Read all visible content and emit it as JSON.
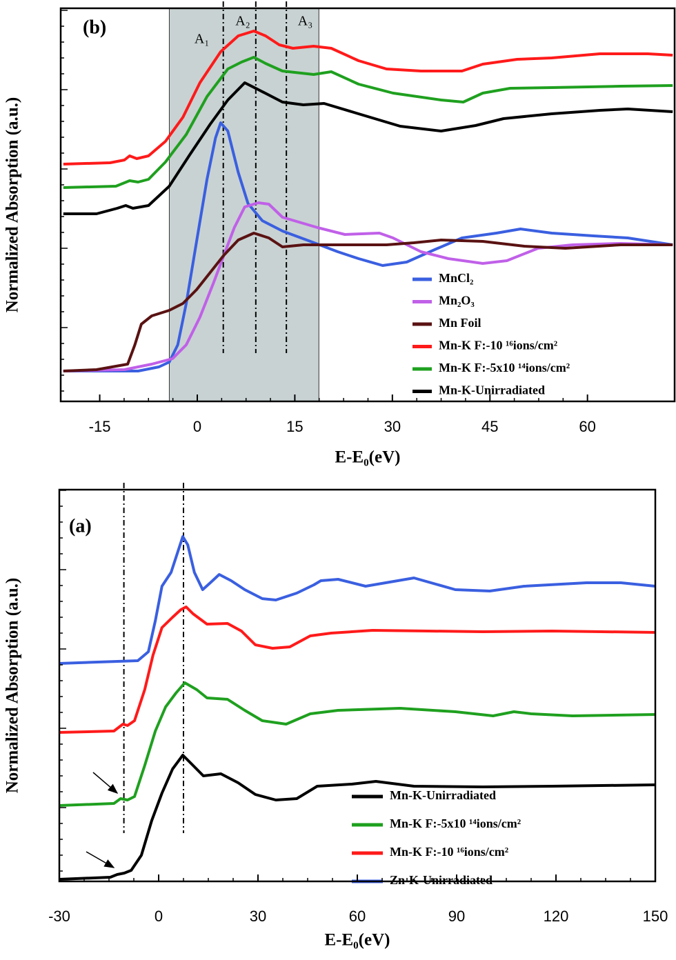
{
  "chart_data": [
    {
      "type": "line",
      "panel_label": "(b)",
      "xlabel": "E-E₀(eV)",
      "ylabel": "Normalized Absorption (a.u.)",
      "xlim": [
        -21,
        73.4
      ],
      "ylim": [
        0,
        57
      ],
      "xticks": [
        -15,
        0,
        15,
        30,
        45,
        60
      ],
      "legend": "lower right",
      "shaded_span": [
        -4.3,
        18.7
      ],
      "vlines": [
        4,
        9,
        13.7
      ],
      "annotations": [
        {
          "text": "A₁",
          "x": 0.7,
          "y": 52.4
        },
        {
          "text": "A₂",
          "x": 7,
          "y": 55
        },
        {
          "text": "A₃",
          "x": 16.6,
          "y": 55
        }
      ],
      "series": [
        {
          "name": "MnCl₂",
          "color": "#3a5fe0",
          "x": [
            -20.6,
            -9.1,
            -5.9,
            -4.3,
            -3.0,
            -1.7,
            -0.1,
            1.5,
            2.8,
            3.6,
            4.7,
            6.3,
            7.8,
            10.0,
            13.1,
            17.4,
            21.6,
            24.8,
            28.5,
            32.2,
            36.5,
            40.7,
            46.0,
            49.7,
            54.5,
            60.9,
            66.2,
            73.1
          ],
          "values": [
            4.4,
            4.4,
            5.0,
            5.7,
            8.2,
            14.2,
            23.2,
            32.2,
            38.2,
            40.4,
            39.2,
            33.2,
            28.7,
            26.2,
            24.7,
            23.2,
            21.7,
            20.7,
            19.7,
            20.2,
            22.0,
            23.7,
            24.4,
            25.0,
            24.4,
            24.0,
            23.7,
            22.7
          ]
        },
        {
          "name": "Mn₂O₃",
          "color": "#c060e8",
          "x": [
            -20.6,
            -11.2,
            -7.0,
            -3.8,
            -1.7,
            0.4,
            2.5,
            4.1,
            5.7,
            7.3,
            9.4,
            11.0,
            13.1,
            18.5,
            22.7,
            28.0,
            30.1,
            34.4,
            38.6,
            43.9,
            47.6,
            52.4,
            57.7,
            65.1,
            73.1
          ],
          "values": [
            4.4,
            4.6,
            5.4,
            6.2,
            8.2,
            12.2,
            17.2,
            21.2,
            25.2,
            28.2,
            28.8,
            28.6,
            26.7,
            25.2,
            24.2,
            24.4,
            23.7,
            21.7,
            20.7,
            20.0,
            20.4,
            22.2,
            22.7,
            22.9,
            22.7
          ]
        },
        {
          "name": "Mn Foil",
          "color": "#5a1212",
          "x": [
            -20.6,
            -15.5,
            -10.7,
            -9.6,
            -8.6,
            -7.0,
            -4.3,
            -2.2,
            -0.1,
            2.0,
            4.1,
            6.3,
            8.7,
            11.0,
            13.1,
            16.3,
            21.6,
            29.1,
            33.3,
            37.5,
            43.9,
            50.3,
            56.6,
            65.1,
            73.1
          ],
          "values": [
            4.4,
            4.6,
            5.4,
            8.2,
            11.2,
            12.4,
            13.2,
            14.2,
            16.2,
            18.7,
            21.2,
            23.4,
            24.4,
            23.7,
            22.4,
            22.7,
            22.7,
            22.7,
            23.0,
            23.4,
            23.2,
            22.5,
            22.2,
            22.7,
            22.7
          ]
        },
        {
          "name": "Mn-K F:-10 ¹⁶ions/cm²",
          "color": "#ff1a1a",
          "x": [
            -20.6,
            -13.4,
            -11.2,
            -10.4,
            -9.3,
            -7.5,
            -4.9,
            -2.2,
            0.4,
            3.6,
            6.3,
            8.7,
            10.5,
            12.6,
            14.7,
            17.9,
            20.6,
            24.8,
            29.1,
            34.4,
            40.7,
            43.9,
            49.2,
            54.5,
            61.9,
            65.1,
            69.3,
            73.1
          ],
          "values": [
            34.4,
            34.6,
            35.0,
            35.6,
            35.2,
            35.6,
            37.7,
            41.2,
            46.2,
            50.7,
            53.0,
            53.7,
            53.0,
            51.7,
            51.2,
            51.5,
            51.2,
            49.4,
            48.2,
            47.9,
            47.9,
            48.9,
            49.6,
            49.8,
            50.4,
            50.4,
            50.4,
            50.2
          ]
        },
        {
          "name": "Mn-K F:-5x10 ¹⁴ions/cm²",
          "color": "#1fa01f",
          "x": [
            -20.6,
            -12.5,
            -10.4,
            -9.1,
            -7.5,
            -4.9,
            -1.7,
            1.5,
            4.7,
            6.8,
            8.7,
            10.5,
            13.1,
            17.9,
            20.6,
            24.8,
            30.1,
            37.5,
            40.9,
            43.9,
            48.1,
            54.5,
            65.1,
            73.1
          ],
          "values": [
            31.0,
            31.2,
            32.0,
            31.8,
            32.2,
            34.7,
            38.7,
            44.2,
            48.2,
            49.2,
            49.9,
            49.0,
            47.9,
            47.4,
            47.8,
            46.0,
            44.7,
            43.7,
            43.4,
            44.7,
            45.4,
            45.5,
            45.7,
            45.8
          ]
        },
        {
          "name": "Mn-K-Unirradiated",
          "color": "#000000",
          "x": [
            -20.6,
            -15.5,
            -12.3,
            -11.0,
            -9.9,
            -7.5,
            -4.3,
            -1.2,
            2.0,
            4.7,
            7.3,
            9.4,
            13.1,
            16.3,
            19.5,
            24.8,
            31.2,
            37.5,
            42.8,
            47.1,
            54.5,
            61.9,
            66.2,
            73.1
          ],
          "values": [
            27.2,
            27.2,
            28.0,
            28.4,
            28.0,
            28.4,
            31.2,
            35.7,
            40.2,
            43.7,
            46.2,
            45.2,
            43.4,
            43.0,
            43.2,
            41.7,
            39.9,
            39.2,
            40.0,
            41.0,
            41.7,
            42.2,
            42.4,
            42.0
          ]
        }
      ]
    },
    {
      "type": "line",
      "panel_label": "(a)",
      "xlabel": "E-E₀(eV)",
      "ylabel": "Normalized Absorption (a.u.)",
      "xlim": [
        -30,
        150
      ],
      "ylim": [
        -0.6,
        56.2
      ],
      "xticks": [
        -30,
        0,
        30,
        60,
        90,
        120,
        150
      ],
      "legend": "lower right",
      "vlines": [
        -10.5,
        7.5
      ],
      "series": [
        {
          "name": "Mn-K-Unirradiated",
          "color": "#000000",
          "x": [
            -30,
            -14.6,
            -12.5,
            -10.4,
            -8.3,
            -5.2,
            -2.1,
            1.0,
            4.2,
            7.3,
            10.0,
            13.5,
            18.8,
            24.0,
            29.2,
            35.4,
            41.7,
            47.9,
            58.3,
            65.6,
            77.1,
            97.9,
            118.8,
            150
          ],
          "values": [
            -0.3,
            0,
            0.4,
            0.6,
            1.0,
            3.2,
            8.2,
            12.2,
            15.7,
            17.7,
            16.4,
            14.7,
            15.0,
            13.7,
            12.0,
            11.2,
            11.4,
            13.2,
            13.5,
            13.9,
            13.2,
            13.1,
            13.2,
            13.4
          ]
        },
        {
          "name": "Mn-K F:-5x10 ¹⁴ions/cm²",
          "color": "#1fa01f",
          "x": [
            -30,
            -13.5,
            -11.5,
            -9.4,
            -7.3,
            -4.2,
            -1.0,
            2.1,
            5.2,
            7.9,
            11.5,
            14.6,
            20.8,
            26.0,
            31.3,
            38.5,
            45.8,
            54.2,
            72.9,
            89.6,
            101.0,
            107.3,
            112.5,
            125.0,
            150
          ],
          "values": [
            10.4,
            10.7,
            11.4,
            11.2,
            11.7,
            16.2,
            21.2,
            24.7,
            26.7,
            28.2,
            27.2,
            26.0,
            25.8,
            24.2,
            22.7,
            22.2,
            23.7,
            24.2,
            24.5,
            24.0,
            23.4,
            24.0,
            23.7,
            23.4,
            23.6
          ]
        },
        {
          "name": "Mn-K F:-10 ¹⁶ions/cm²",
          "color": "#ff1a1a",
          "x": [
            -30,
            -13.5,
            -10.8,
            -9.4,
            -7.3,
            -4.2,
            -1.7,
            1.0,
            4.2,
            6.7,
            8.3,
            10.4,
            14.6,
            20.8,
            25.0,
            29.2,
            34.4,
            39.6,
            45.8,
            52.1,
            64.6,
            81.3,
            97.9,
            118.8,
            150
          ],
          "values": [
            21.0,
            21.2,
            22.2,
            22.0,
            22.7,
            27.2,
            32.2,
            36.2,
            37.7,
            38.8,
            39.2,
            38.2,
            36.7,
            36.8,
            35.7,
            33.7,
            33.2,
            33.4,
            35.0,
            35.4,
            35.8,
            35.7,
            35.6,
            35.7,
            35.5
          ]
        },
        {
          "name": "Zn-K-Unirradiated",
          "color": "#3a5fe0",
          "x": [
            -30,
            -6.3,
            -3.1,
            -1.0,
            1.0,
            3.75,
            5.8,
            7.3,
            8.8,
            10.8,
            13.3,
            15.6,
            18.3,
            21.9,
            26.0,
            31.3,
            35.4,
            41.7,
            46.9,
            49.0,
            54.2,
            62.5,
            77.1,
            89.6,
            100.0,
            110.4,
            129.2,
            139.6,
            150
          ],
          "values": [
            31.0,
            31.4,
            32.7,
            37.2,
            42.2,
            44.2,
            47.2,
            49.4,
            48.2,
            44.2,
            41.7,
            42.7,
            43.9,
            43.0,
            41.7,
            40.4,
            40.2,
            41.2,
            42.4,
            43.0,
            43.2,
            42.2,
            43.4,
            41.7,
            41.5,
            42.2,
            42.7,
            42.7,
            42.2
          ]
        }
      ]
    }
  ]
}
